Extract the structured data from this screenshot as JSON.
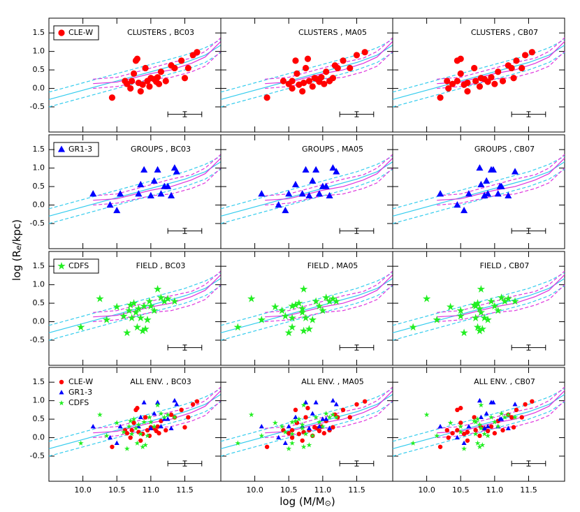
{
  "xlabel": [
    "log (M/M",
    "⊙",
    ")"
  ],
  "ylabel": [
    "log (R",
    "e",
    "/kpc)"
  ],
  "xlim": [
    9.5,
    12.03
  ],
  "ylim": [
    -1.18,
    1.9
  ],
  "xticks": [
    {
      "value": 10,
      "label": "10.0"
    },
    {
      "value": 10.5,
      "label": "10.5"
    },
    {
      "value": 11,
      "label": "11.0"
    },
    {
      "value": 11.5,
      "label": "11.5"
    }
  ],
  "yticks": [
    -0.5,
    {
      "value": 0,
      "label": "0.0"
    },
    0.5,
    {
      "value": 1,
      "label": "1.0"
    },
    1.5
  ],
  "relations": [
    {
      "color": "#33ccee",
      "dash": false,
      "x": [
        9.5,
        10,
        10.5,
        11,
        11.5,
        11.8,
        12.03
      ],
      "values": [
        -0.3,
        -0.05,
        0.2,
        0.45,
        0.7,
        0.9,
        1.17
      ]
    },
    {
      "color": "#33ccee",
      "dash": true,
      "x": [
        9.5,
        10,
        10.5,
        11,
        11.5,
        11.8,
        12.03
      ],
      "values": [
        -0.1,
        0.15,
        0.4,
        0.65,
        0.9,
        1.1,
        1.32
      ]
    },
    {
      "color": "#33ccee",
      "dash": true,
      "x": [
        9.5,
        10,
        10.5,
        11,
        11.5,
        11.8,
        12.03
      ],
      "values": [
        -0.5,
        -0.25,
        0.0,
        0.25,
        0.5,
        0.7,
        0.97
      ]
    },
    {
      "color": "#dd33dd",
      "dash": false,
      "x": [
        10.15,
        10.5,
        11,
        11.3,
        11.6,
        11.8,
        12.03
      ],
      "values": [
        0.13,
        0.17,
        0.4,
        0.5,
        0.68,
        0.85,
        1.27
      ]
    },
    {
      "color": "#dd33dd",
      "dash": true,
      "x": [
        10.15,
        10.5,
        11,
        11.3,
        11.6,
        11.8,
        12.03
      ],
      "values": [
        0.25,
        0.3,
        0.55,
        0.7,
        0.82,
        1.0,
        1.37
      ]
    },
    {
      "color": "#dd33dd",
      "dash": true,
      "x": [
        10.15,
        10.5,
        11,
        11.3,
        11.6,
        11.8,
        12.03
      ],
      "values": [
        0.0,
        0.05,
        0.25,
        0.3,
        0.45,
        0.6,
        1.0
      ]
    }
  ],
  "error_bar": {
    "x": 11.5,
    "y": -0.7,
    "xerr": 0.25,
    "yerr": 0.07
  },
  "chart_data": [
    {
      "type": "scatter",
      "title": "CLUSTERS , BC03",
      "legend": true,
      "series": [
        {
          "name": "CLE-W",
          "color": "#ff0000",
          "marker": "circle",
          "x": [
            10.43,
            10.62,
            10.72,
            10.78,
            10.8,
            10.65,
            10.7,
            10.85,
            10.88,
            10.92,
            10.95,
            10.98,
            11.0,
            11.05,
            11.08,
            11.1,
            11.12,
            11.15,
            11.22,
            11.3,
            11.35,
            11.45,
            11.5,
            11.55,
            11.62,
            11.68,
            10.75,
            10.82
          ],
          "values": [
            -0.25,
            0.2,
            0.2,
            0.75,
            0.8,
            0.12,
            0.0,
            -0.08,
            0.1,
            0.55,
            0.2,
            0.05,
            0.28,
            0.25,
            0.18,
            0.3,
            0.12,
            0.45,
            0.2,
            0.62,
            0.55,
            0.75,
            0.28,
            0.55,
            0.9,
            0.98,
            0.4,
            0.15
          ]
        }
      ]
    },
    {
      "type": "scatter",
      "title": "CLUSTERS , MA05",
      "series": [
        {
          "color": "#ff0000",
          "marker": "circle",
          "x": [
            10.18,
            10.42,
            10.55,
            10.6,
            10.78,
            10.5,
            10.55,
            10.7,
            10.65,
            10.75,
            10.8,
            10.85,
            10.88,
            10.92,
            10.95,
            10.98,
            11.02,
            11.05,
            11.1,
            11.18,
            11.22,
            11.3,
            11.15,
            11.4,
            11.5,
            11.62,
            10.62,
            10.72
          ],
          "values": [
            -0.25,
            0.2,
            0.2,
            0.75,
            0.8,
            0.12,
            0.0,
            -0.08,
            0.1,
            0.55,
            0.2,
            0.05,
            0.28,
            0.25,
            0.18,
            0.3,
            0.12,
            0.45,
            0.2,
            0.62,
            0.55,
            0.75,
            0.28,
            0.55,
            0.9,
            0.98,
            0.4,
            0.15
          ]
        }
      ]
    },
    {
      "type": "scatter",
      "title": "CLUSTERS , CB07",
      "series": [
        {
          "color": "#ff0000",
          "marker": "circle",
          "x": [
            10.2,
            10.3,
            10.45,
            10.45,
            10.5,
            10.38,
            10.32,
            10.6,
            10.55,
            10.7,
            10.72,
            10.78,
            10.8,
            10.85,
            10.9,
            10.95,
            11.0,
            11.05,
            11.12,
            11.2,
            11.25,
            11.32,
            11.28,
            11.4,
            11.45,
            11.55,
            10.5,
            10.6
          ],
          "values": [
            -0.25,
            0.2,
            0.2,
            0.75,
            0.8,
            0.12,
            0.0,
            -0.08,
            0.1,
            0.55,
            0.2,
            0.05,
            0.28,
            0.25,
            0.18,
            0.3,
            0.12,
            0.45,
            0.2,
            0.62,
            0.55,
            0.75,
            0.28,
            0.55,
            0.9,
            0.98,
            0.4,
            0.15
          ]
        }
      ]
    },
    {
      "type": "scatter",
      "title": "GROUPS , BC03",
      "legend": true,
      "series": [
        {
          "name": "GR1-3",
          "color": "#0000ff",
          "marker": "triangle",
          "x": [
            10.15,
            10.4,
            10.5,
            10.55,
            10.82,
            10.85,
            10.9,
            11.0,
            11.05,
            11.1,
            11.15,
            11.2,
            11.25,
            11.3,
            11.35,
            11.38
          ],
          "values": [
            0.3,
            0.0,
            -0.15,
            0.3,
            0.3,
            0.55,
            0.95,
            0.25,
            0.65,
            0.95,
            0.3,
            0.5,
            0.5,
            0.25,
            1.0,
            0.9
          ]
        }
      ]
    },
    {
      "type": "scatter",
      "title": "GROUPS , MA05",
      "series": [
        {
          "color": "#0000ff",
          "marker": "triangle",
          "x": [
            10.1,
            10.35,
            10.45,
            10.5,
            10.7,
            10.6,
            10.75,
            10.8,
            10.85,
            10.9,
            10.95,
            11.0,
            11.05,
            11.1,
            11.15,
            11.2
          ],
          "values": [
            0.3,
            0.0,
            -0.15,
            0.3,
            0.3,
            0.55,
            0.95,
            0.25,
            0.65,
            0.95,
            0.3,
            0.5,
            0.5,
            0.25,
            1.0,
            0.9
          ]
        }
      ]
    },
    {
      "type": "scatter",
      "title": "GROUPS , CB07",
      "series": [
        {
          "color": "#0000ff",
          "marker": "triangle",
          "x": [
            10.2,
            10.45,
            10.55,
            10.62,
            10.9,
            10.8,
            10.95,
            10.85,
            10.88,
            10.98,
            11.05,
            11.08,
            11.1,
            11.2,
            10.78,
            11.3
          ],
          "values": [
            0.3,
            0.0,
            -0.15,
            0.3,
            0.3,
            0.55,
            0.95,
            0.25,
            0.65,
            0.95,
            0.3,
            0.5,
            0.5,
            0.25,
            1.0,
            0.9
          ]
        }
      ]
    },
    {
      "type": "scatter",
      "title": "FIELD , BC03",
      "legend": true,
      "series": [
        {
          "name": "CDFS",
          "color": "#22ee22",
          "marker": "star",
          "x": [
            9.97,
            10.25,
            10.35,
            10.5,
            10.6,
            10.65,
            10.7,
            10.72,
            10.75,
            10.78,
            10.8,
            10.82,
            10.85,
            10.88,
            10.9,
            10.95,
            10.98,
            11.0,
            11.05,
            11.1,
            11.15,
            11.2,
            11.25,
            11.35,
            10.68,
            10.92
          ],
          "values": [
            -0.15,
            0.62,
            0.05,
            0.4,
            0.15,
            -0.3,
            0.45,
            0.1,
            0.5,
            0.25,
            -0.15,
            0.35,
            0.1,
            -0.25,
            0.42,
            0.05,
            0.55,
            0.42,
            0.3,
            0.88,
            0.65,
            0.55,
            0.62,
            0.55,
            0.3,
            -0.2
          ]
        }
      ]
    },
    {
      "type": "scatter",
      "title": "FIELD , MA05",
      "series": [
        {
          "color": "#22ee22",
          "marker": "star",
          "x": [
            9.75,
            9.95,
            10.1,
            10.3,
            10.45,
            10.5,
            10.6,
            10.55,
            10.65,
            10.7,
            10.55,
            10.7,
            10.75,
            10.72,
            10.55,
            10.85,
            10.9,
            10.95,
            11.0,
            10.72,
            11.05,
            11.1,
            11.15,
            11.2,
            10.4,
            10.8
          ],
          "values": [
            -0.15,
            0.62,
            0.05,
            0.4,
            0.15,
            -0.3,
            0.45,
            0.1,
            0.5,
            0.25,
            -0.15,
            0.35,
            0.1,
            -0.25,
            0.42,
            0.05,
            0.55,
            0.42,
            0.3,
            0.88,
            0.65,
            0.55,
            0.62,
            0.55,
            0.3,
            -0.2
          ]
        }
      ]
    },
    {
      "type": "scatter",
      "title": "FIELD , CB07",
      "series": [
        {
          "color": "#22ee22",
          "marker": "star",
          "x": [
            9.8,
            10.0,
            10.15,
            10.35,
            10.5,
            10.55,
            10.7,
            10.72,
            10.75,
            10.8,
            10.75,
            10.78,
            10.85,
            10.78,
            10.72,
            10.9,
            10.95,
            11.0,
            11.05,
            10.8,
            11.1,
            11.15,
            11.2,
            11.3,
            10.5,
            10.82
          ],
          "values": [
            -0.15,
            0.62,
            0.05,
            0.4,
            0.15,
            -0.3,
            0.45,
            0.1,
            0.5,
            0.25,
            -0.15,
            0.35,
            0.1,
            -0.25,
            0.42,
            0.05,
            0.55,
            0.42,
            0.3,
            0.88,
            0.65,
            0.55,
            0.62,
            0.55,
            0.3,
            -0.2
          ]
        }
      ]
    },
    {
      "type": "overlay",
      "title": "ALL ENV. , BC03",
      "legend": true
    },
    {
      "type": "overlay",
      "title": "ALL ENV. , MA05"
    },
    {
      "type": "overlay",
      "title": "ALL ENV. , CB07"
    }
  ]
}
